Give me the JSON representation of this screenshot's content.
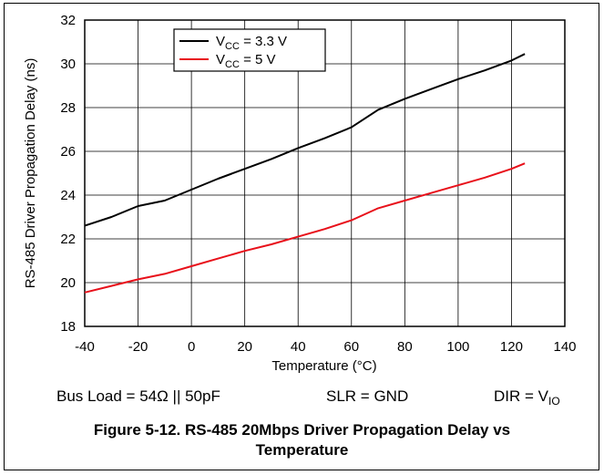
{
  "chart_data": {
    "type": "line",
    "ylabel": "RS-485 Driver Propagation Delay (ns)",
    "xlabel": "Temperature (°C)",
    "xlim": [
      -40,
      140
    ],
    "ylim": [
      18,
      32
    ],
    "x_ticks": [
      -40,
      -20,
      0,
      20,
      40,
      60,
      80,
      100,
      120,
      140
    ],
    "y_ticks": [
      18,
      20,
      22,
      24,
      26,
      28,
      30,
      32
    ],
    "grid": true,
    "legend_position": "top-center",
    "series": [
      {
        "name_main": "V",
        "name_sub": "CC",
        "name_rest": " = 3.3 V",
        "color": "#000000",
        "x": [
          -40,
          -30,
          -20,
          -10,
          0,
          10,
          20,
          30,
          40,
          50,
          60,
          70,
          80,
          90,
          100,
          110,
          120,
          125
        ],
        "values": [
          22.6,
          23.0,
          23.5,
          23.75,
          24.25,
          24.75,
          25.2,
          25.65,
          26.15,
          26.6,
          27.1,
          27.9,
          28.4,
          28.85,
          29.3,
          29.7,
          30.15,
          30.45
        ]
      },
      {
        "name_main": "V",
        "name_sub": "CC",
        "name_rest": " = 5 V",
        "color": "#e8101a",
        "x": [
          -40,
          -30,
          -20,
          -10,
          0,
          10,
          20,
          30,
          40,
          50,
          60,
          70,
          80,
          90,
          100,
          110,
          120,
          125
        ],
        "values": [
          19.55,
          19.85,
          20.15,
          20.4,
          20.75,
          21.1,
          21.45,
          21.75,
          22.1,
          22.45,
          22.85,
          23.4,
          23.75,
          24.1,
          24.45,
          24.8,
          25.2,
          25.45
        ]
      }
    ]
  },
  "conditions": {
    "bus_load": "Bus Load = 54Ω || 50pF",
    "slr": "SLR = GND",
    "dir_main": "DIR = V",
    "dir_sub": "IO"
  },
  "caption": {
    "line1": "Figure 5-12. RS-485 20Mbps Driver Propagation Delay vs",
    "line2": "Temperature"
  }
}
